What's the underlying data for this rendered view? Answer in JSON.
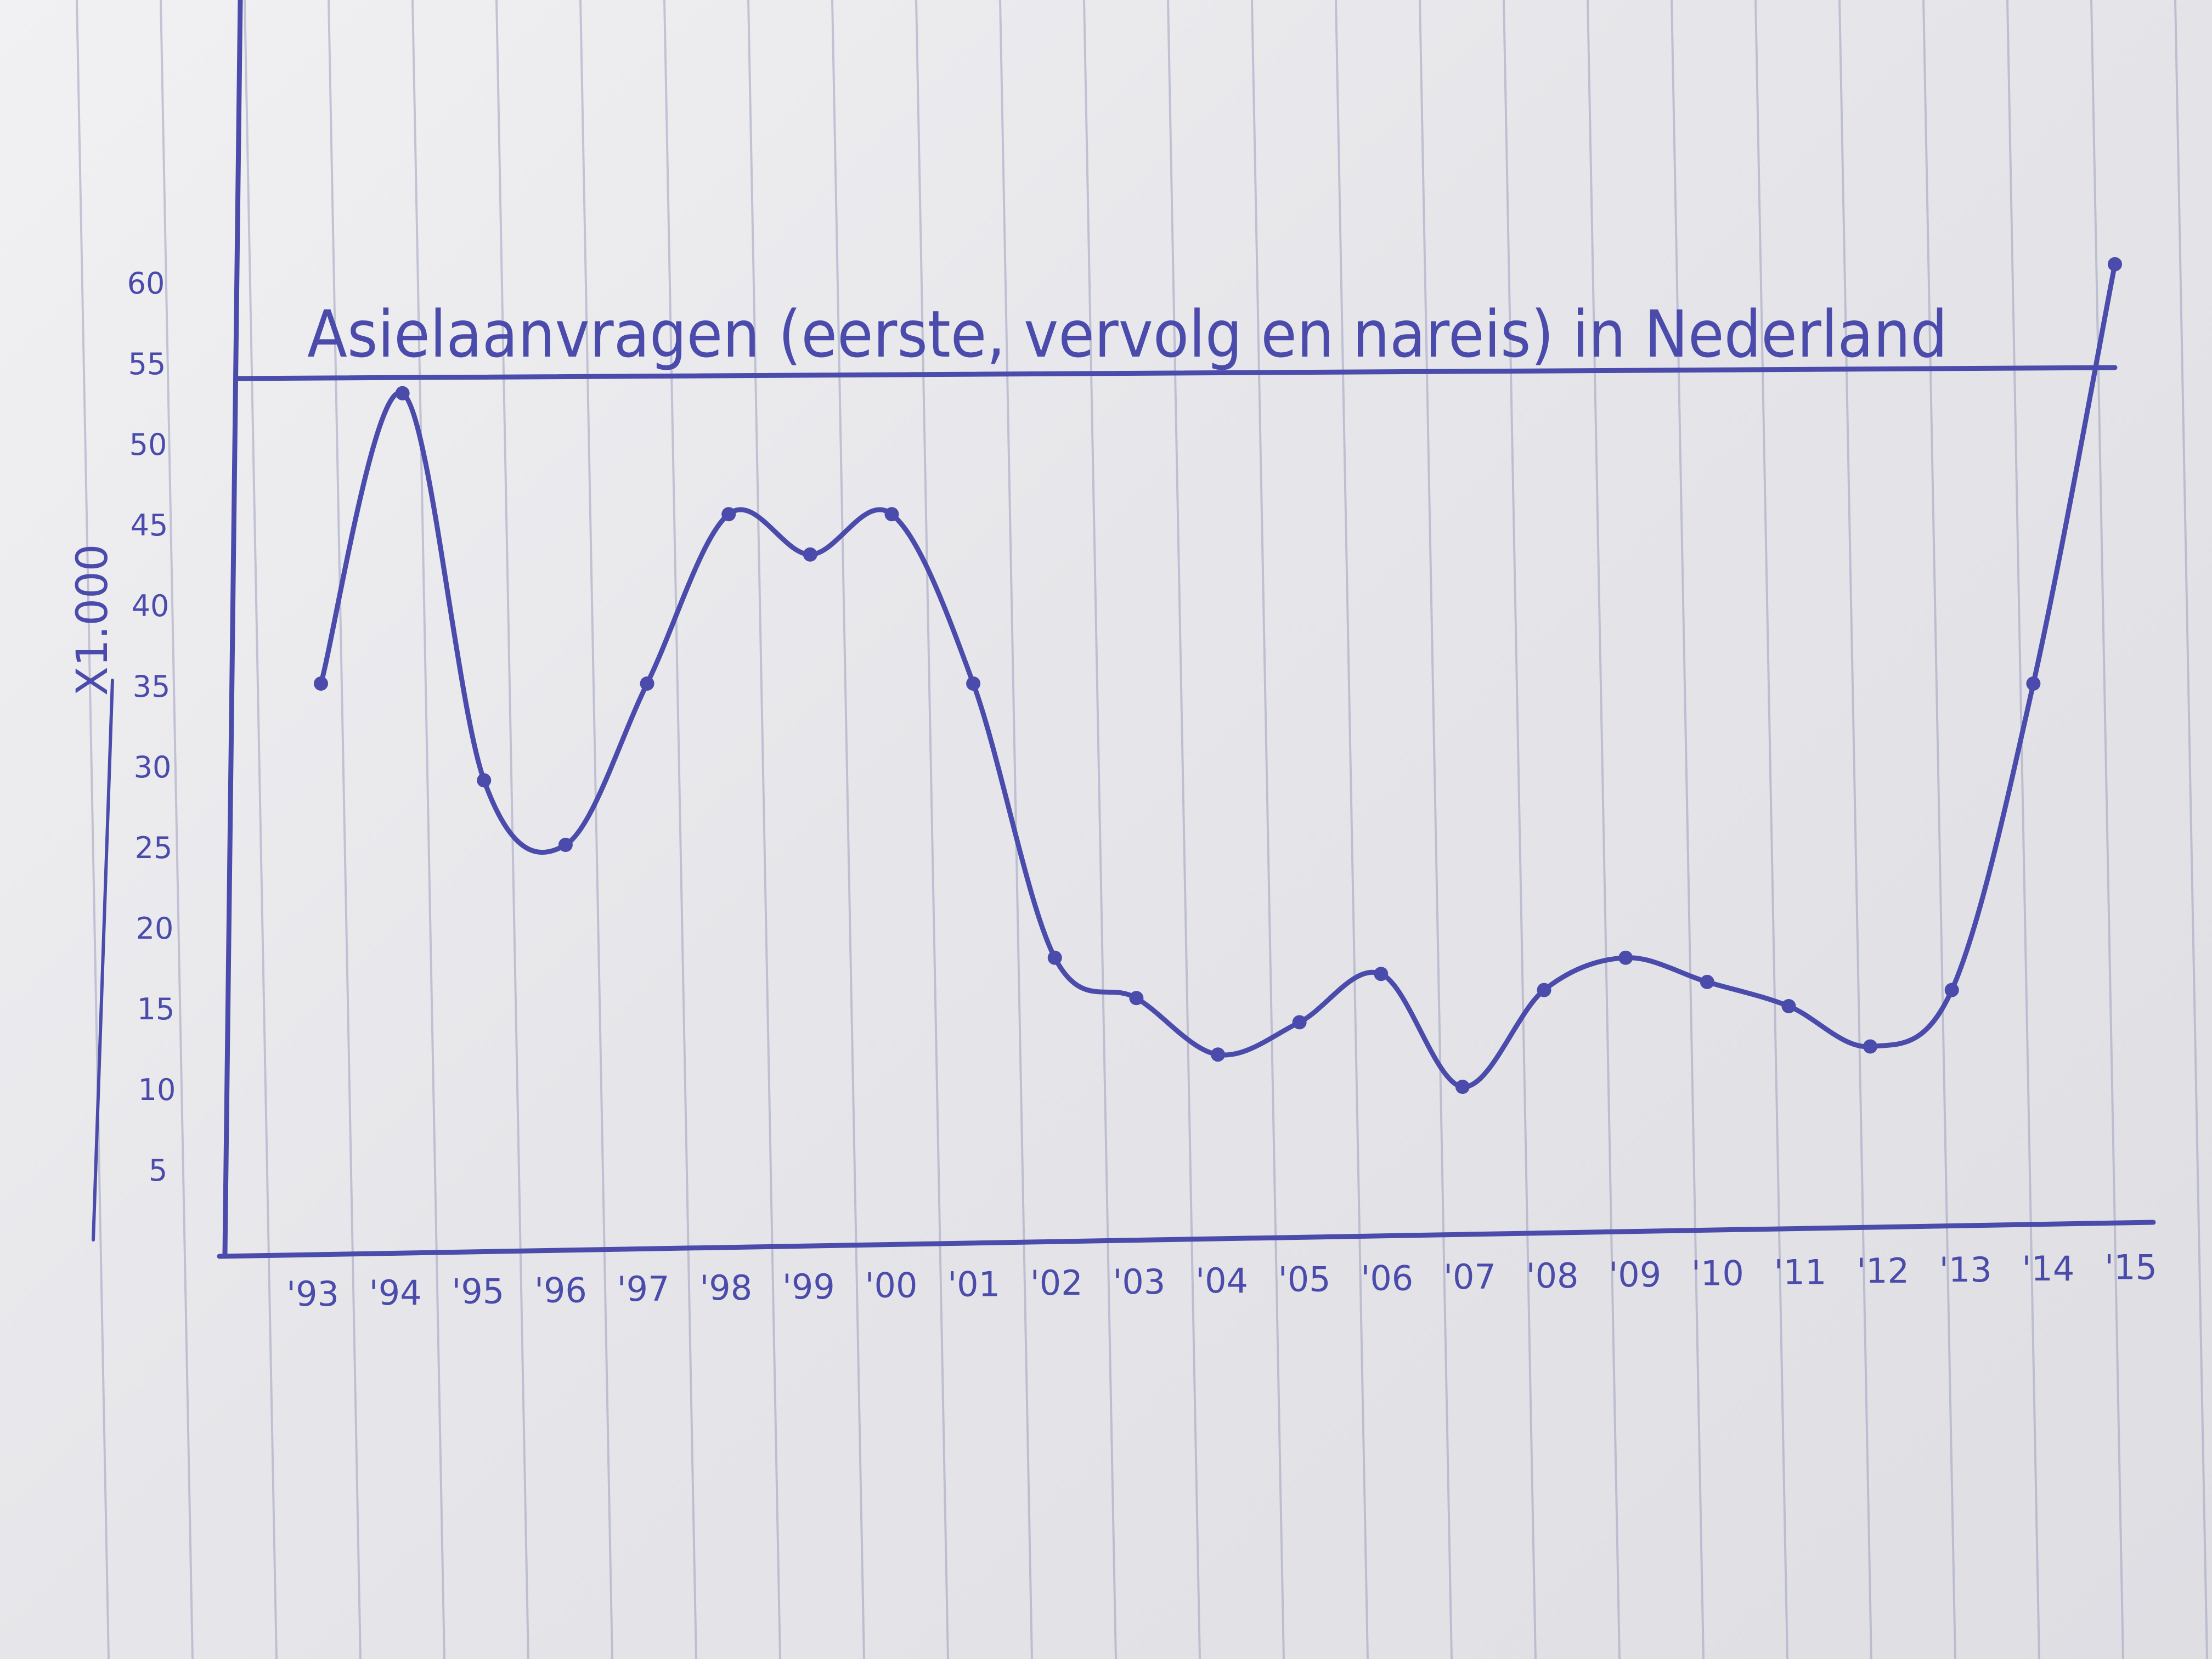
{
  "colors": {
    "ink": "#4a4bab",
    "paper": "#ececef",
    "ruling": "#9ea1bf"
  },
  "chart_data": {
    "type": "line",
    "title": "Asielaanvragen (eerste, vervolg en nareis) in Nederland",
    "ylabel": "X1.000",
    "xlabel": "",
    "x": [
      "'93",
      "'94",
      "'95",
      "'96",
      "'97",
      "'98",
      "'99",
      "'00",
      "'01",
      "'02",
      "'03",
      "'04",
      "'05",
      "'06",
      "'07",
      "'08",
      "'09",
      "'10",
      "'11",
      "'12",
      "'13",
      "'14",
      "'15"
    ],
    "y_ticks": [
      5,
      10,
      15,
      20,
      25,
      30,
      35,
      40,
      45,
      50,
      55,
      60
    ],
    "ylim": [
      0,
      62
    ],
    "grid": false,
    "series": [
      {
        "x": [
          "'93",
          "'94",
          "'95",
          "'96",
          "'97",
          "'98",
          "'99",
          "'00",
          "'01",
          "'02",
          "'03",
          "'04",
          "'05",
          "'06",
          "'07",
          "'08",
          "'09",
          "'10",
          "'11",
          "'12",
          "'13",
          "'14",
          "'15"
        ],
        "values": [
          35,
          53,
          29,
          25,
          35,
          45.5,
          43,
          45.5,
          35,
          18,
          15.5,
          12,
          14,
          17,
          10,
          16,
          18,
          16.5,
          15,
          12.5,
          16,
          35,
          61
        ]
      }
    ]
  }
}
